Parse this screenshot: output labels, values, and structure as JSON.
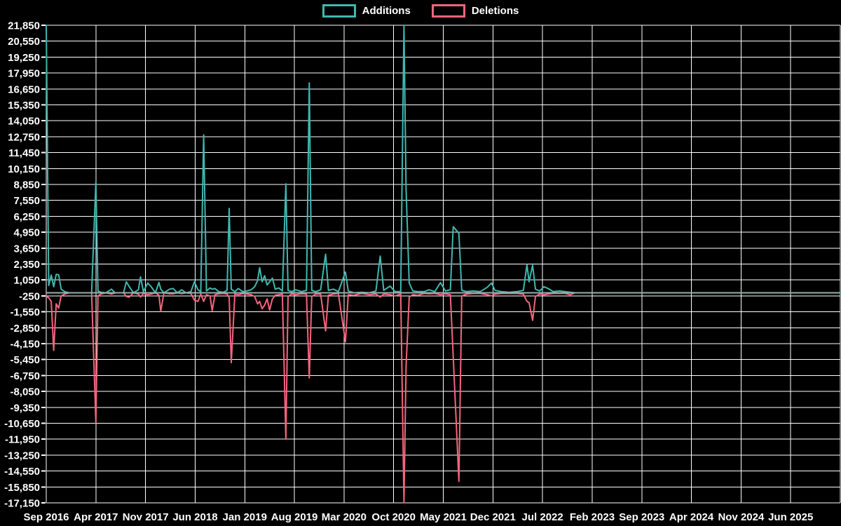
{
  "legend": {
    "items": [
      {
        "label": "Additions",
        "color": "#3fb8af"
      },
      {
        "label": "Deletions",
        "color": "#f4657d"
      }
    ],
    "position": "top-center"
  },
  "chart_data": {
    "type": "line",
    "background": "#000000",
    "grid": true,
    "grid_color": "#ffffff",
    "text_color": "#ffffff",
    "zero_line_color": "#96b0ae",
    "legend_position": "top-center",
    "x_axis": {
      "tick_labels": [
        "Sep 2016",
        "Apr 2017",
        "Nov 2017",
        "Jun 2018",
        "Jan 2019",
        "Aug 2019",
        "Mar 2020",
        "Oct 2020",
        "May 2021",
        "Dec 2021",
        "Jul 2022",
        "Feb 2023",
        "Sep 2023",
        "Apr 2024",
        "Nov 2024",
        "Jun 2025"
      ],
      "months_per_tick": 7,
      "domain_months": [
        0,
        112
      ]
    },
    "y_axis": {
      "max": 21850,
      "min": -17150,
      "step": 1300,
      "tick_labels": [
        "21,850",
        "20,550",
        "19,250",
        "17,950",
        "16,650",
        "15,350",
        "14,050",
        "12,750",
        "11,450",
        "10,150",
        "8,850",
        "7,550",
        "6,250",
        "4,950",
        "3,650",
        "2,350",
        "1,050",
        "-250",
        "-1,550",
        "-2,850",
        "-4,150",
        "-5,450",
        "-6,750",
        "-8,050",
        "-9,350",
        "-10,650",
        "-11,950",
        "-13,250",
        "-14,550",
        "-15,850",
        "-17,150"
      ]
    },
    "x_months_since_start": [
      0,
      0.35,
      0.7,
      1.05,
      1.4,
      1.75,
      2.1,
      2.6,
      3.2,
      6.4,
      7.0,
      7.3,
      7.7,
      8.4,
      9.2,
      9.7,
      10.9,
      11.3,
      11.7,
      12.3,
      13.0,
      13.3,
      13.7,
      14.3,
      14.8,
      15.4,
      15.9,
      16.15,
      16.6,
      17.4,
      17.9,
      18.5,
      19.1,
      19.7,
      20.4,
      20.9,
      21.4,
      21.8,
      22.2,
      22.6,
      23.1,
      23.4,
      23.8,
      24.3,
      25.0,
      25.5,
      25.8,
      26.1,
      26.6,
      27.1,
      27.7,
      28.3,
      28.9,
      29.4,
      29.8,
      30.1,
      30.45,
      30.8,
      31.15,
      31.5,
      31.9,
      32.3,
      32.8,
      33.3,
      33.8,
      34.1,
      34.6,
      35.2,
      36.0,
      36.7,
      37.1,
      37.45,
      38.0,
      38.7,
      39.4,
      39.8,
      40.5,
      41.2,
      42.2,
      42.6,
      43.4,
      44.5,
      45.6,
      46.5,
      47.1,
      47.6,
      48.5,
      49.2,
      50.0,
      50.45,
      50.75,
      51.2,
      51.7,
      52.4,
      53.3,
      54.0,
      54.8,
      55.6,
      56.3,
      57.0,
      57.4,
      58.2,
      58.6,
      59.3,
      60.2,
      61.2,
      62.2,
      62.8,
      63.3,
      64.2,
      65.3,
      66.4,
      67.3,
      67.8,
      68.1,
      68.6,
      69.0,
      69.6,
      70.2,
      70.8,
      71.5,
      72.4,
      73.1,
      73.9,
      74.6,
      80,
      90,
      100,
      112
    ],
    "series": [
      {
        "name": "Additions",
        "color": "#3fb8af",
        "values": [
          21850,
          600,
          1450,
          500,
          1500,
          1480,
          300,
          100,
          0,
          0,
          9050,
          150,
          50,
          0,
          300,
          0,
          0,
          900,
          500,
          0,
          250,
          1300,
          100,
          800,
          500,
          0,
          850,
          300,
          0,
          300,
          350,
          0,
          250,
          0,
          100,
          900,
          250,
          100,
          12900,
          150,
          400,
          300,
          350,
          100,
          50,
          200,
          6900,
          300,
          100,
          350,
          100,
          150,
          250,
          500,
          1000,
          2050,
          900,
          1400,
          650,
          900,
          1200,
          300,
          400,
          150,
          8900,
          200,
          100,
          250,
          100,
          200,
          17150,
          200,
          100,
          250,
          3150,
          200,
          300,
          100,
          1700,
          150,
          0,
          50,
          0,
          150,
          3000,
          200,
          550,
          100,
          100,
          21850,
          8500,
          800,
          150,
          100,
          100,
          250,
          100,
          830,
          150,
          250,
          5400,
          4850,
          200,
          100,
          150,
          100,
          450,
          800,
          200,
          100,
          50,
          100,
          200,
          2300,
          900,
          2250,
          300,
          150,
          500,
          350,
          100,
          150,
          100,
          50,
          0,
          0,
          0,
          0,
          0
        ]
      },
      {
        "name": "Deletions",
        "color": "#f4657d",
        "values": [
          -300,
          -400,
          -700,
          -4700,
          -900,
          -1250,
          -250,
          -100,
          0,
          0,
          -10600,
          -250,
          -100,
          0,
          -100,
          0,
          0,
          -300,
          -350,
          0,
          -100,
          -350,
          -50,
          -150,
          -100,
          0,
          -200,
          -1500,
          0,
          -80,
          -80,
          0,
          -60,
          0,
          -50,
          -600,
          -700,
          -100,
          -700,
          -150,
          -250,
          -1450,
          -150,
          -80,
          -50,
          -100,
          -400,
          -5700,
          -100,
          -150,
          -60,
          -100,
          -150,
          -300,
          -900,
          -700,
          -1300,
          -1000,
          -500,
          -1400,
          -500,
          -200,
          -150,
          -100,
          -11950,
          -300,
          -100,
          -150,
          -80,
          -100,
          -6950,
          -300,
          -100,
          -100,
          -3100,
          -200,
          -100,
          -50,
          -4000,
          -150,
          -200,
          -50,
          -150,
          -100,
          -350,
          -100,
          -150,
          -250,
          -100,
          -17150,
          -6000,
          -350,
          -150,
          -200,
          -50,
          -80,
          -50,
          -150,
          -80,
          -150,
          -5200,
          -15400,
          -250,
          -100,
          -50,
          -50,
          -150,
          -250,
          -100,
          -50,
          -50,
          -50,
          -100,
          -700,
          -800,
          -2250,
          -300,
          -100,
          -150,
          -100,
          -50,
          -50,
          -30,
          -150,
          0,
          0,
          0,
          0,
          0
        ]
      }
    ]
  }
}
